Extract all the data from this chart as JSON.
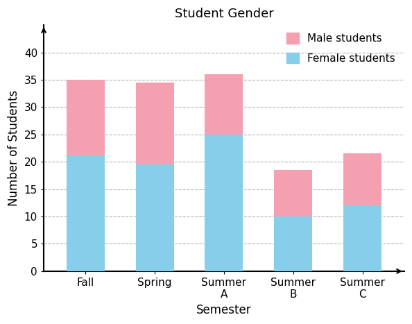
{
  "title": "Student Gender",
  "xlabel": "Semester",
  "ylabel": "Number of Students",
  "categories": [
    "Fall",
    "Spring",
    "Summer\nA",
    "Summer\nB",
    "Summer\nC"
  ],
  "female_values": [
    21,
    19.5,
    25,
    10,
    12
  ],
  "male_values": [
    14,
    15,
    11,
    8.5,
    9.5
  ],
  "female_color": "#87CEEB",
  "male_color": "#F4A0B0",
  "ylim": [
    0,
    45
  ],
  "yticks": [
    0,
    5,
    10,
    15,
    20,
    25,
    30,
    35,
    40
  ],
  "bar_width": 0.55,
  "legend_labels": [
    "Male students",
    "Female students"
  ],
  "title_fontsize": 13,
  "label_fontsize": 12,
  "tick_fontsize": 11,
  "bg_color": "#ffffff"
}
